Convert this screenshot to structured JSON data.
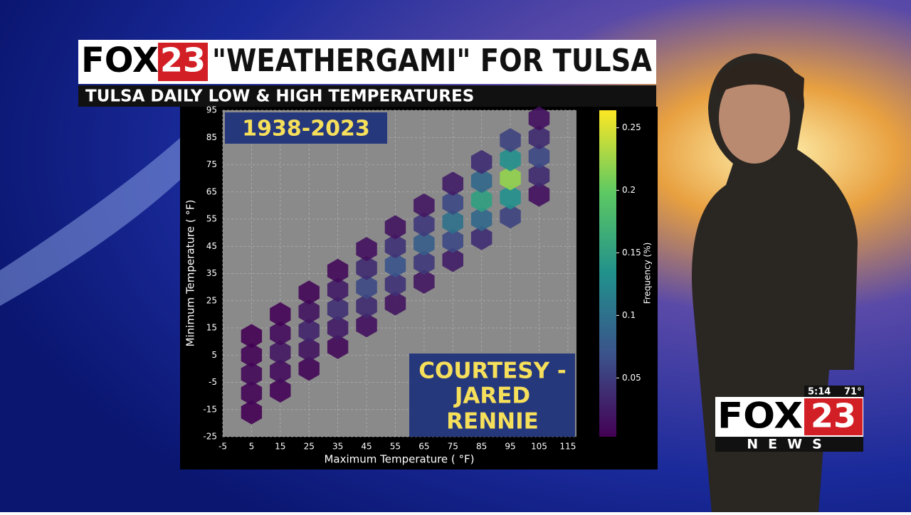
{
  "header": {
    "logo_fox": "FOX",
    "logo_num": "23",
    "title": "\"WEATHERGAMI\" FOR TULSA",
    "subtitle": "TULSA DAILY LOW & HIGH TEMPERATURES"
  },
  "overlay": {
    "years": "1938-2023",
    "credit": [
      "COURTESY -",
      "JARED",
      "RENNIE"
    ]
  },
  "bug": {
    "time": "5:14",
    "temp": "71°",
    "fox": "FOX",
    "num": "23",
    "news": "NEWS"
  },
  "chart_data": {
    "type": "hexbin",
    "xlabel": "Maximum Temperature ( °F)",
    "ylabel": "Minimum Temperature ( °F)",
    "colorbar_label": "Frequency (%)",
    "colormap": "viridis",
    "grid": true,
    "xlim": [
      -5,
      118
    ],
    "ylim": [
      -25,
      95
    ],
    "clim": [
      0.003,
      0.264
    ],
    "xticks": [
      -5,
      5,
      15,
      25,
      35,
      45,
      55,
      65,
      75,
      85,
      95,
      105,
      115
    ],
    "yticks": [
      -25,
      -15,
      -5,
      5,
      15,
      25,
      35,
      45,
      55,
      65,
      75,
      85,
      95
    ],
    "cticks": [
      0.05,
      0.1,
      0.15,
      0.2,
      0.25
    ],
    "x": [
      5,
      5,
      5,
      5,
      5,
      15,
      15,
      15,
      15,
      15,
      25,
      25,
      25,
      25,
      25,
      35,
      35,
      35,
      35,
      35,
      45,
      45,
      45,
      45,
      45,
      55,
      55,
      55,
      55,
      55,
      65,
      65,
      65,
      65,
      65,
      75,
      75,
      75,
      75,
      75,
      85,
      85,
      85,
      85,
      85,
      95,
      95,
      95,
      95,
      95,
      105,
      105,
      105,
      105,
      105
    ],
    "y": [
      -16,
      -9,
      -2,
      5,
      12,
      -8,
      -1,
      6,
      13,
      20,
      0,
      7,
      14,
      21,
      28,
      8,
      15,
      22,
      29,
      36,
      16,
      23,
      30,
      37,
      44,
      24,
      31,
      38,
      45,
      52,
      32,
      39,
      46,
      53,
      60,
      40,
      47,
      54,
      61,
      68,
      48,
      55,
      62,
      69,
      76,
      56,
      63,
      70,
      77,
      84,
      64,
      71,
      78,
      85,
      92
    ],
    "values": [
      0.003,
      0.006,
      0.01,
      0.006,
      0.003,
      0.005,
      0.012,
      0.02,
      0.012,
      0.005,
      0.008,
      0.018,
      0.03,
      0.018,
      0.008,
      0.01,
      0.024,
      0.04,
      0.024,
      0.01,
      0.015,
      0.036,
      0.06,
      0.036,
      0.015,
      0.018,
      0.042,
      0.07,
      0.042,
      0.018,
      0.02,
      0.048,
      0.08,
      0.048,
      0.02,
      0.025,
      0.06,
      0.1,
      0.06,
      0.025,
      0.038,
      0.09,
      0.15,
      0.09,
      0.038,
      0.055,
      0.132,
      0.22,
      0.132,
      0.055,
      0.015,
      0.036,
      0.06,
      0.036,
      0.015
    ]
  }
}
